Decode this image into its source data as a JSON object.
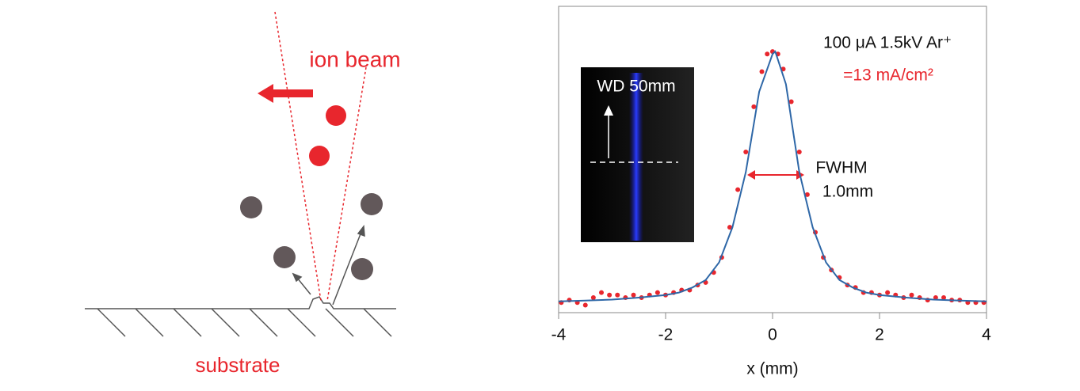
{
  "diagram": {
    "beam_label": "ion beam",
    "substrate_label": "substrate"
  },
  "chart_data": {
    "type": "scatter",
    "xlabel": "x (mm)",
    "xlim": [
      -4,
      4
    ],
    "xticks": [
      -4,
      -2,
      0,
      2,
      4
    ],
    "ylim": [
      -0.04,
      1.18
    ],
    "inset_label": "WD 50mm",
    "annotations": [
      "100 μA 1.5kV Ar⁺",
      "=13 mA/cm²",
      "FWHM",
      "1.0mm"
    ],
    "series": [
      {
        "mode": "markers",
        "color": "#e8262d",
        "x": [
          -3.95,
          -3.8,
          -3.65,
          -3.5,
          -3.35,
          -3.2,
          -3.05,
          -2.9,
          -2.75,
          -2.6,
          -2.45,
          -2.3,
          -2.15,
          -2.0,
          -1.85,
          -1.7,
          -1.55,
          -1.4,
          -1.25,
          -1.1,
          -0.95,
          -0.8,
          -0.65,
          -0.5,
          -0.35,
          -0.2,
          -0.1,
          0,
          0.1,
          0.2,
          0.35,
          0.5,
          0.65,
          0.8,
          0.95,
          1.1,
          1.25,
          1.4,
          1.55,
          1.7,
          1.85,
          2.0,
          2.15,
          2.3,
          2.45,
          2.6,
          2.75,
          2.9,
          3.05,
          3.2,
          3.35,
          3.5,
          3.65,
          3.8,
          3.95
        ],
        "values": [
          0.0,
          0.01,
          0.0,
          -0.01,
          0.02,
          0.04,
          0.03,
          0.03,
          0.02,
          0.03,
          0.02,
          0.03,
          0.04,
          0.03,
          0.04,
          0.05,
          0.05,
          0.07,
          0.08,
          0.12,
          0.18,
          0.3,
          0.45,
          0.6,
          0.78,
          0.92,
          0.99,
          1.0,
          0.99,
          0.93,
          0.8,
          0.6,
          0.43,
          0.28,
          0.18,
          0.13,
          0.1,
          0.07,
          0.06,
          0.04,
          0.04,
          0.03,
          0.04,
          0.03,
          0.02,
          0.03,
          0.02,
          0.01,
          0.02,
          0.02,
          0.01,
          0.01,
          0.0,
          0.0,
          0.0
        ]
      },
      {
        "mode": "line",
        "color": "#2e67a7",
        "x": [
          -4,
          -3.5,
          -3,
          -2.5,
          -2,
          -1.75,
          -1.5,
          -1.25,
          -1,
          -0.75,
          -0.5,
          -0.25,
          0,
          0.05,
          0.25,
          0.5,
          0.75,
          1,
          1.25,
          1.5,
          1.75,
          2,
          2.5,
          3,
          3.5,
          4
        ],
        "values": [
          0.005,
          0.008,
          0.012,
          0.02,
          0.03,
          0.04,
          0.06,
          0.09,
          0.16,
          0.3,
          0.52,
          0.84,
          0.99,
          1.0,
          0.87,
          0.52,
          0.3,
          0.16,
          0.09,
          0.06,
          0.04,
          0.03,
          0.02,
          0.012,
          0.008,
          0.005
        ]
      }
    ]
  }
}
